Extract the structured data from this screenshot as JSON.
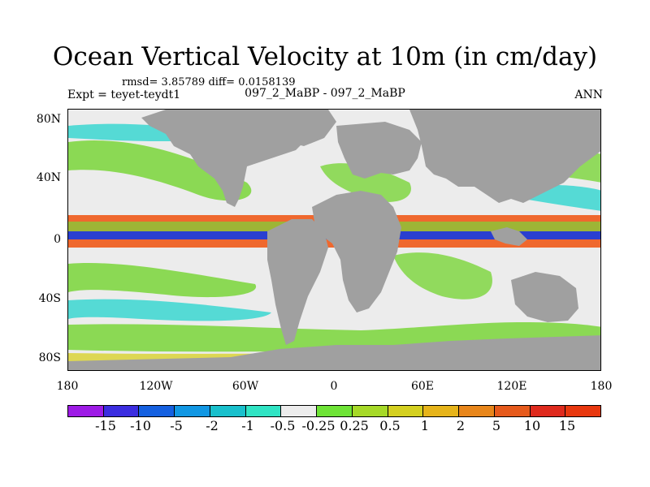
{
  "title": "Ocean Vertical Velocity at 10m (in cm/day)",
  "stats": "rmsd= 3.85789 diff= 0.0158139",
  "experiment": "Expt = teyet-teydt1",
  "comparison": "097_2_MaBP - 097_2_MaBP",
  "season": "ANN",
  "lat_labels": [
    "80N",
    "40N",
    "0",
    "40S",
    "80S"
  ],
  "lon_labels": [
    "180",
    "120W",
    "60W",
    "0",
    "60E",
    "120E",
    "180"
  ],
  "colorbar": {
    "colors": [
      "#9e1be6",
      "#3b2de0",
      "#1560e0",
      "#1197e3",
      "#19c0cc",
      "#30e4c4",
      "#ececec",
      "#6ee336",
      "#a6d928",
      "#d4d020",
      "#e6b41a",
      "#e8861b",
      "#e65a1c",
      "#df2a1d",
      "#e8380f"
    ],
    "levels": [
      "-15",
      "-10",
      "-5",
      "-2",
      "-1",
      "-0.5",
      "-0.25",
      "0.25",
      "0.5",
      "1",
      "2",
      "5",
      "10",
      "15"
    ]
  },
  "map_colors": {
    "ocean_background": "#ececec",
    "land": "#a0a0a0",
    "equatorial_upwelling_core": "#2a3fd0",
    "equatorial_band": "#f05a1a",
    "green_band": "#7ad63a",
    "cyan_band": "#30d6d0",
    "yellow_band": "#d8d020"
  }
}
